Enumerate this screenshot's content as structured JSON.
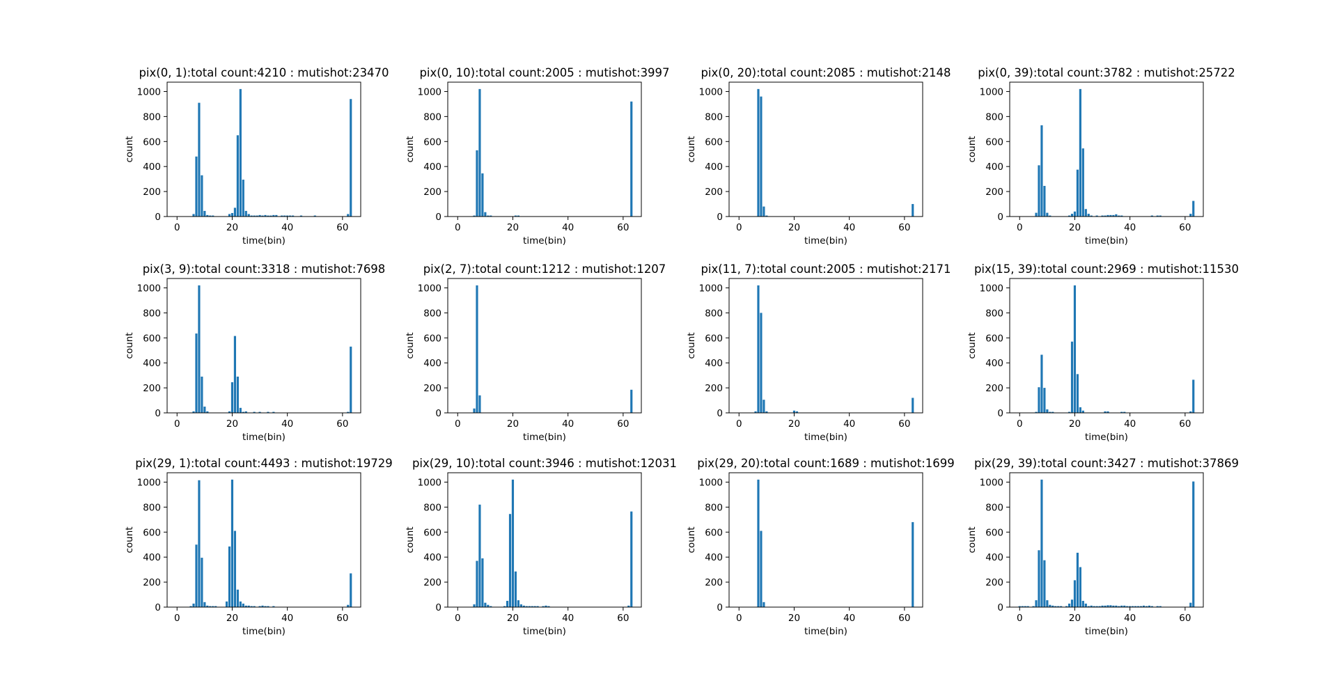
{
  "chart_data": [
    {
      "type": "bar",
      "title": "pix(0, 1):total count:4210 : mutishot:23470",
      "xlabel": "time(bin)",
      "ylabel": "count",
      "xlim": [
        -3.6,
        66.6
      ],
      "ylim": [
        0,
        1075
      ],
      "xticks": [
        0,
        20,
        40,
        60
      ],
      "yticks": [
        0,
        200,
        400,
        600,
        800,
        1000
      ],
      "grid": false,
      "color": "#1f77b4",
      "x": [
        6,
        7,
        8,
        9,
        10,
        11,
        12,
        13,
        19,
        20,
        21,
        22,
        23,
        24,
        25,
        26,
        27,
        28,
        29,
        30,
        31,
        32,
        33,
        34,
        35,
        36,
        38,
        39,
        40,
        41,
        42,
        45,
        50,
        62,
        63
      ],
      "y": [
        20,
        480,
        910,
        330,
        45,
        12,
        8,
        8,
        20,
        28,
        70,
        650,
        1020,
        295,
        45,
        20,
        8,
        8,
        8,
        12,
        8,
        12,
        8,
        8,
        12,
        12,
        8,
        8,
        8,
        8,
        8,
        8,
        8,
        20,
        940
      ]
    },
    {
      "type": "bar",
      "title": "pix(0, 10):total count:2005 : mutishot:3997",
      "xlabel": "time(bin)",
      "ylabel": "count",
      "xlim": [
        -3.6,
        66.6
      ],
      "ylim": [
        0,
        1075
      ],
      "xticks": [
        0,
        20,
        40,
        60
      ],
      "yticks": [
        0,
        200,
        400,
        600,
        800,
        1000
      ],
      "grid": false,
      "color": "#1f77b4",
      "x": [
        6,
        7,
        8,
        9,
        10,
        11,
        12,
        21,
        22,
        63
      ],
      "y": [
        8,
        530,
        1020,
        345,
        35,
        8,
        8,
        8,
        8,
        920
      ]
    },
    {
      "type": "bar",
      "title": "pix(0, 20):total count:2085 : mutishot:2148",
      "xlabel": "time(bin)",
      "ylabel": "count",
      "xlim": [
        -3.6,
        66.6
      ],
      "ylim": [
        0,
        1075
      ],
      "xticks": [
        0,
        20,
        40,
        60
      ],
      "yticks": [
        0,
        200,
        400,
        600,
        800,
        1000
      ],
      "grid": false,
      "color": "#1f77b4",
      "x": [
        7,
        8,
        9,
        10,
        63
      ],
      "y": [
        1020,
        960,
        80,
        8,
        100
      ]
    },
    {
      "type": "bar",
      "title": "pix(0, 39):total count:3782 : mutishot:25722",
      "xlabel": "time(bin)",
      "ylabel": "count",
      "xlim": [
        -3.6,
        66.6
      ],
      "ylim": [
        0,
        1075
      ],
      "xticks": [
        0,
        20,
        40,
        60
      ],
      "yticks": [
        0,
        200,
        400,
        600,
        800,
        1000
      ],
      "grid": false,
      "color": "#1f77b4",
      "x": [
        6,
        7,
        8,
        9,
        10,
        11,
        18,
        19,
        20,
        21,
        22,
        23,
        24,
        25,
        26,
        28,
        30,
        31,
        32,
        33,
        34,
        35,
        36,
        37,
        48,
        50,
        51,
        62,
        63
      ],
      "y": [
        30,
        410,
        730,
        245,
        30,
        8,
        8,
        22,
        40,
        375,
        1020,
        545,
        60,
        22,
        8,
        8,
        8,
        8,
        12,
        12,
        12,
        18,
        8,
        8,
        8,
        8,
        8,
        22,
        125
      ]
    },
    {
      "type": "bar",
      "title": "pix(3, 9):total count:3318 : mutishot:7698",
      "xlabel": "time(bin)",
      "ylabel": "count",
      "xlim": [
        -3.6,
        66.6
      ],
      "ylim": [
        0,
        1075
      ],
      "xticks": [
        0,
        20,
        40,
        60
      ],
      "yticks": [
        0,
        200,
        400,
        600,
        800,
        1000
      ],
      "grid": false,
      "color": "#1f77b4",
      "x": [
        6,
        7,
        8,
        9,
        10,
        11,
        19,
        20,
        21,
        22,
        23,
        24,
        25,
        28,
        30,
        33,
        35,
        62,
        63
      ],
      "y": [
        12,
        635,
        1020,
        290,
        50,
        12,
        12,
        245,
        615,
        290,
        40,
        8,
        12,
        8,
        8,
        8,
        8,
        8,
        530
      ]
    },
    {
      "type": "bar",
      "title": "pix(2, 7):total count:1212 : mutishot:1207",
      "xlabel": "time(bin)",
      "ylabel": "count",
      "xlim": [
        -3.6,
        66.6
      ],
      "ylim": [
        0,
        1075
      ],
      "xticks": [
        0,
        20,
        40,
        60
      ],
      "yticks": [
        0,
        200,
        400,
        600,
        800,
        1000
      ],
      "grid": false,
      "color": "#1f77b4",
      "x": [
        6,
        7,
        8,
        63
      ],
      "y": [
        35,
        1020,
        140,
        185
      ]
    },
    {
      "type": "bar",
      "title": "pix(11, 7):total count:2005 : mutishot:2171",
      "xlabel": "time(bin)",
      "ylabel": "count",
      "xlim": [
        -3.6,
        66.6
      ],
      "ylim": [
        0,
        1075
      ],
      "xticks": [
        0,
        20,
        40,
        60
      ],
      "yticks": [
        0,
        200,
        400,
        600,
        800,
        1000
      ],
      "grid": false,
      "color": "#1f77b4",
      "x": [
        6,
        7,
        8,
        9,
        10,
        20,
        21,
        63
      ],
      "y": [
        12,
        1020,
        800,
        105,
        12,
        18,
        12,
        120
      ]
    },
    {
      "type": "bar",
      "title": "pix(15, 39):total count:2969 : mutishot:11530",
      "xlabel": "time(bin)",
      "ylabel": "count",
      "xlim": [
        -3.6,
        66.6
      ],
      "ylim": [
        0,
        1075
      ],
      "xticks": [
        0,
        20,
        40,
        60
      ],
      "yticks": [
        0,
        200,
        400,
        600,
        800,
        1000
      ],
      "grid": false,
      "color": "#1f77b4",
      "x": [
        6,
        7,
        8,
        9,
        10,
        11,
        12,
        18,
        19,
        20,
        21,
        22,
        23,
        31,
        32,
        37,
        38,
        62,
        63
      ],
      "y": [
        8,
        205,
        465,
        200,
        28,
        8,
        8,
        8,
        570,
        1020,
        310,
        45,
        18,
        12,
        12,
        8,
        8,
        12,
        265
      ]
    },
    {
      "type": "bar",
      "title": "pix(29, 1):total count:4493 : mutishot:19729",
      "xlabel": "time(bin)",
      "ylabel": "count",
      "xlim": [
        -3.6,
        66.6
      ],
      "ylim": [
        0,
        1075
      ],
      "xticks": [
        0,
        20,
        40,
        60
      ],
      "yticks": [
        0,
        200,
        400,
        600,
        800,
        1000
      ],
      "grid": false,
      "color": "#1f77b4",
      "x": [
        5,
        6,
        7,
        8,
        9,
        10,
        11,
        12,
        13,
        14,
        18,
        19,
        20,
        21,
        22,
        23,
        24,
        25,
        26,
        27,
        28,
        30,
        31,
        32,
        33,
        35,
        62,
        63
      ],
      "y": [
        8,
        28,
        500,
        1015,
        395,
        40,
        12,
        8,
        8,
        8,
        45,
        485,
        1020,
        610,
        140,
        45,
        28,
        12,
        12,
        8,
        8,
        8,
        12,
        8,
        8,
        8,
        18,
        270
      ]
    },
    {
      "type": "bar",
      "title": "pix(29, 10):total count:3946 : mutishot:12031",
      "xlabel": "time(bin)",
      "ylabel": "count",
      "xlim": [
        -3.6,
        66.6
      ],
      "ylim": [
        0,
        1075
      ],
      "xticks": [
        0,
        20,
        40,
        60
      ],
      "yticks": [
        0,
        200,
        400,
        600,
        800,
        1000
      ],
      "grid": false,
      "color": "#1f77b4",
      "x": [
        6,
        7,
        8,
        9,
        10,
        11,
        12,
        17,
        18,
        19,
        20,
        21,
        22,
        23,
        24,
        25,
        26,
        27,
        28,
        29,
        31,
        32,
        33,
        62,
        63
      ],
      "y": [
        22,
        370,
        820,
        390,
        35,
        18,
        8,
        8,
        50,
        745,
        1020,
        285,
        55,
        22,
        12,
        8,
        8,
        8,
        8,
        8,
        8,
        12,
        8,
        12,
        765
      ]
    },
    {
      "type": "bar",
      "title": "pix(29, 20):total count:1689 : mutishot:1699",
      "xlabel": "time(bin)",
      "ylabel": "count",
      "xlim": [
        -3.6,
        66.6
      ],
      "ylim": [
        0,
        1075
      ],
      "xticks": [
        0,
        20,
        40,
        60
      ],
      "yticks": [
        0,
        200,
        400,
        600,
        800,
        1000
      ],
      "grid": false,
      "color": "#1f77b4",
      "x": [
        7,
        8,
        9,
        63
      ],
      "y": [
        1020,
        610,
        40,
        680
      ]
    },
    {
      "type": "bar",
      "title": "pix(29, 39):total count:3427 : mutishot:37869",
      "xlabel": "time(bin)",
      "ylabel": "count",
      "xlim": [
        -3.6,
        66.6
      ],
      "ylim": [
        0,
        1075
      ],
      "xticks": [
        0,
        20,
        40,
        60
      ],
      "yticks": [
        0,
        200,
        400,
        600,
        800,
        1000
      ],
      "grid": false,
      "color": "#1f77b4",
      "x": [
        0,
        1,
        2,
        3,
        5,
        6,
        7,
        8,
        9,
        10,
        11,
        12,
        13,
        14,
        15,
        17,
        18,
        19,
        20,
        21,
        22,
        23,
        24,
        25,
        26,
        27,
        28,
        29,
        30,
        31,
        32,
        33,
        34,
        35,
        36,
        37,
        38,
        39,
        40,
        41,
        42,
        43,
        44,
        45,
        46,
        47,
        48,
        50,
        51,
        62,
        63
      ],
      "y": [
        8,
        8,
        8,
        8,
        8,
        55,
        455,
        1020,
        375,
        55,
        18,
        12,
        8,
        8,
        8,
        8,
        28,
        60,
        215,
        435,
        320,
        50,
        28,
        8,
        12,
        8,
        8,
        8,
        12,
        12,
        15,
        15,
        12,
        12,
        8,
        12,
        12,
        8,
        8,
        8,
        8,
        8,
        8,
        12,
        8,
        12,
        8,
        8,
        8,
        35,
        1005
      ]
    }
  ]
}
